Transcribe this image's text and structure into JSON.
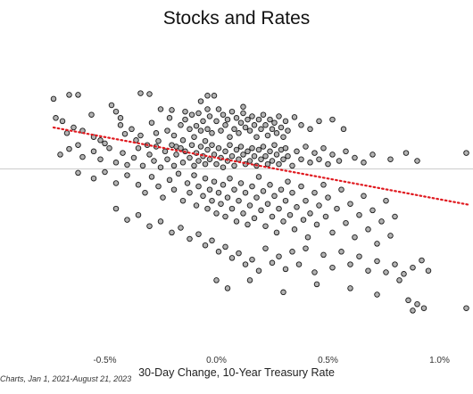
{
  "chart_data": {
    "type": "scatter",
    "title": "Stocks and Rates",
    "xlabel": "30-Day Change, 10-Year Treasury Rate",
    "ylabel": "",
    "source": "Charts, Jan 1, 2021-August 21, 2023",
    "xlim": [
      -0.97,
      1.15
    ],
    "ylim": [
      -0.2,
      0.145
    ],
    "xticks": [
      {
        "value": -0.5,
        "label": "-0.5%"
      },
      {
        "value": 0.0,
        "label": "0.0%"
      },
      {
        "value": 0.5,
        "label": "0.5%"
      },
      {
        "value": 1.0,
        "label": "1.0%"
      }
    ],
    "zero_line_y": 0,
    "trendline": {
      "style": "dotted",
      "color": "#e0191f",
      "x": [
        -0.73,
        1.13
      ],
      "y": [
        0.052,
        -0.045
      ]
    },
    "marker_color": "#b3b3b3",
    "marker_edge": "#1a1a1a",
    "points": [
      [
        -0.73,
        0.088
      ],
      [
        -0.66,
        0.093
      ],
      [
        -0.62,
        0.093
      ],
      [
        -0.56,
        0.068
      ],
      [
        -0.47,
        0.08
      ],
      [
        -0.45,
        0.072
      ],
      [
        -0.43,
        0.064
      ],
      [
        -0.34,
        0.095
      ],
      [
        -0.3,
        0.094
      ],
      [
        -0.2,
        0.074
      ],
      [
        -0.14,
        0.072
      ],
      [
        -0.07,
        0.085
      ],
      [
        -0.04,
        0.092
      ],
      [
        -0.04,
        0.075
      ],
      [
        -0.01,
        0.092
      ],
      [
        0.12,
        0.078
      ],
      [
        -0.72,
        0.064
      ],
      [
        -0.69,
        0.06
      ],
      [
        -0.67,
        0.045
      ],
      [
        -0.64,
        0.052
      ],
      [
        -0.6,
        0.048
      ],
      [
        -0.55,
        0.04
      ],
      [
        -0.52,
        0.036
      ],
      [
        -0.5,
        0.032
      ],
      [
        -0.43,
        0.055
      ],
      [
        -0.41,
        0.044
      ],
      [
        -0.38,
        0.05
      ],
      [
        -0.36,
        0.036
      ],
      [
        -0.34,
        0.042
      ],
      [
        -0.31,
        0.03
      ],
      [
        -0.29,
        0.058
      ],
      [
        -0.27,
        0.045
      ],
      [
        -0.26,
        0.035
      ],
      [
        -0.25,
        0.075
      ],
      [
        -0.22,
        0.048
      ],
      [
        -0.21,
        0.064
      ],
      [
        -0.19,
        0.042
      ],
      [
        -0.18,
        0.028
      ],
      [
        -0.16,
        0.055
      ],
      [
        -0.15,
        0.036
      ],
      [
        -0.14,
        0.062
      ],
      [
        -0.12,
        0.05
      ],
      [
        -0.11,
        0.068
      ],
      [
        -0.1,
        0.04
      ],
      [
        -0.09,
        0.054
      ],
      [
        -0.08,
        0.07
      ],
      [
        -0.07,
        0.048
      ],
      [
        -0.06,
        0.06
      ],
      [
        -0.05,
        0.035
      ],
      [
        -0.04,
        0.05
      ],
      [
        -0.03,
        0.066
      ],
      [
        -0.02,
        0.045
      ],
      [
        0.0,
        0.06
      ],
      [
        0.01,
        0.075
      ],
      [
        0.02,
        0.048
      ],
      [
        0.03,
        0.068
      ],
      [
        0.04,
        0.055
      ],
      [
        0.05,
        0.062
      ],
      [
        0.06,
        0.04
      ],
      [
        0.07,
        0.072
      ],
      [
        0.08,
        0.05
      ],
      [
        0.09,
        0.064
      ],
      [
        0.1,
        0.045
      ],
      [
        0.11,
        0.058
      ],
      [
        0.12,
        0.07
      ],
      [
        0.13,
        0.052
      ],
      [
        0.14,
        0.062
      ],
      [
        0.15,
        0.048
      ],
      [
        0.16,
        0.066
      ],
      [
        0.17,
        0.055
      ],
      [
        0.18,
        0.04
      ],
      [
        0.19,
        0.062
      ],
      [
        0.2,
        0.05
      ],
      [
        0.21,
        0.068
      ],
      [
        0.22,
        0.055
      ],
      [
        0.23,
        0.042
      ],
      [
        0.24,
        0.062
      ],
      [
        0.25,
        0.05
      ],
      [
        0.26,
        0.058
      ],
      [
        0.27,
        0.045
      ],
      [
        0.28,
        0.066
      ],
      [
        0.29,
        0.052
      ],
      [
        0.3,
        0.04
      ],
      [
        0.31,
        0.06
      ],
      [
        0.32,
        0.048
      ],
      [
        0.35,
        0.065
      ],
      [
        0.38,
        0.055
      ],
      [
        0.42,
        0.05
      ],
      [
        0.46,
        0.06
      ],
      [
        0.52,
        0.062
      ],
      [
        0.57,
        0.05
      ],
      [
        -0.7,
        0.018
      ],
      [
        -0.66,
        0.025
      ],
      [
        -0.62,
        0.03
      ],
      [
        -0.6,
        0.015
      ],
      [
        -0.55,
        0.022
      ],
      [
        -0.52,
        0.012
      ],
      [
        -0.48,
        0.026
      ],
      [
        -0.45,
        0.008
      ],
      [
        -0.42,
        0.02
      ],
      [
        -0.4,
        0.005
      ],
      [
        -0.37,
        0.014
      ],
      [
        -0.35,
        0.026
      ],
      [
        -0.33,
        0.004
      ],
      [
        -0.3,
        0.018
      ],
      [
        -0.28,
        0.01
      ],
      [
        -0.27,
        0.028
      ],
      [
        -0.25,
        0.002
      ],
      [
        -0.23,
        0.022
      ],
      [
        -0.22,
        0.012
      ],
      [
        -0.2,
        0.03
      ],
      [
        -0.19,
        0.004
      ],
      [
        -0.18,
        0.018
      ],
      [
        -0.16,
        0.026
      ],
      [
        -0.15,
        0.008
      ],
      [
        -0.14,
        0.022
      ],
      [
        -0.12,
        0.014
      ],
      [
        -0.11,
        0.03
      ],
      [
        -0.1,
        0.004
      ],
      [
        -0.09,
        0.02
      ],
      [
        -0.08,
        0.01
      ],
      [
        -0.07,
        0.028
      ],
      [
        -0.06,
        0.016
      ],
      [
        -0.05,
        0.006
      ],
      [
        -0.04,
        0.024
      ],
      [
        -0.03,
        0.012
      ],
      [
        -0.02,
        0.03
      ],
      [
        -0.01,
        0.018
      ],
      [
        0.0,
        0.006
      ],
      [
        0.01,
        0.026
      ],
      [
        0.02,
        0.014
      ],
      [
        0.03,
        0.002
      ],
      [
        0.04,
        0.022
      ],
      [
        0.05,
        0.01
      ],
      [
        0.06,
        0.03
      ],
      [
        0.07,
        0.016
      ],
      [
        0.08,
        0.004
      ],
      [
        0.09,
        0.024
      ],
      [
        0.1,
        0.012
      ],
      [
        0.11,
        0.028
      ],
      [
        0.12,
        0.018
      ],
      [
        0.13,
        0.006
      ],
      [
        0.14,
        0.022
      ],
      [
        0.15,
        0.01
      ],
      [
        0.16,
        0.026
      ],
      [
        0.17,
        0.016
      ],
      [
        0.18,
        0.004
      ],
      [
        0.19,
        0.024
      ],
      [
        0.2,
        0.012
      ],
      [
        0.21,
        0.028
      ],
      [
        0.22,
        0.016
      ],
      [
        0.23,
        0.006
      ],
      [
        0.24,
        0.022
      ],
      [
        0.25,
        0.01
      ],
      [
        0.26,
        0.03
      ],
      [
        0.27,
        0.018
      ],
      [
        0.28,
        0.006
      ],
      [
        0.29,
        0.024
      ],
      [
        0.3,
        0.012
      ],
      [
        0.31,
        0.026
      ],
      [
        0.32,
        0.016
      ],
      [
        0.34,
        0.004
      ],
      [
        0.36,
        0.022
      ],
      [
        0.38,
        0.012
      ],
      [
        0.4,
        0.028
      ],
      [
        0.42,
        0.008
      ],
      [
        0.44,
        0.02
      ],
      [
        0.46,
        0.012
      ],
      [
        0.48,
        0.026
      ],
      [
        0.5,
        0.006
      ],
      [
        0.52,
        0.018
      ],
      [
        0.55,
        0.01
      ],
      [
        0.58,
        0.022
      ],
      [
        0.62,
        0.014
      ],
      [
        0.66,
        0.008
      ],
      [
        0.7,
        0.018
      ],
      [
        0.78,
        0.012
      ],
      [
        0.85,
        0.02
      ],
      [
        0.9,
        0.01
      ],
      [
        1.12,
        0.02
      ],
      [
        -0.62,
        -0.005
      ],
      [
        -0.55,
        -0.012
      ],
      [
        -0.5,
        -0.004
      ],
      [
        -0.45,
        -0.018
      ],
      [
        -0.4,
        -0.008
      ],
      [
        -0.35,
        -0.02
      ],
      [
        -0.32,
        -0.03
      ],
      [
        -0.29,
        -0.01
      ],
      [
        -0.26,
        -0.022
      ],
      [
        -0.24,
        -0.036
      ],
      [
        -0.21,
        -0.014
      ],
      [
        -0.19,
        -0.026
      ],
      [
        -0.17,
        -0.006
      ],
      [
        -0.15,
        -0.04
      ],
      [
        -0.13,
        -0.018
      ],
      [
        -0.12,
        -0.03
      ],
      [
        -0.1,
        -0.008
      ],
      [
        -0.09,
        -0.046
      ],
      [
        -0.08,
        -0.022
      ],
      [
        -0.06,
        -0.034
      ],
      [
        -0.05,
        -0.012
      ],
      [
        -0.04,
        -0.05
      ],
      [
        -0.03,
        -0.026
      ],
      [
        -0.02,
        -0.04
      ],
      [
        -0.01,
        -0.016
      ],
      [
        0.0,
        -0.056
      ],
      [
        0.01,
        -0.03
      ],
      [
        0.02,
        -0.044
      ],
      [
        0.03,
        -0.02
      ],
      [
        0.04,
        -0.06
      ],
      [
        0.05,
        -0.036
      ],
      [
        0.06,
        -0.012
      ],
      [
        0.07,
        -0.05
      ],
      [
        0.08,
        -0.026
      ],
      [
        0.09,
        -0.066
      ],
      [
        0.1,
        -0.04
      ],
      [
        0.11,
        -0.018
      ],
      [
        0.12,
        -0.056
      ],
      [
        0.13,
        -0.03
      ],
      [
        0.14,
        -0.07
      ],
      [
        0.15,
        -0.046
      ],
      [
        0.16,
        -0.022
      ],
      [
        0.17,
        -0.062
      ],
      [
        0.18,
        -0.036
      ],
      [
        0.19,
        -0.01
      ],
      [
        0.2,
        -0.052
      ],
      [
        0.21,
        -0.028
      ],
      [
        0.22,
        -0.072
      ],
      [
        0.23,
        -0.044
      ],
      [
        0.24,
        -0.02
      ],
      [
        0.25,
        -0.06
      ],
      [
        0.26,
        -0.034
      ],
      [
        0.27,
        -0.08
      ],
      [
        0.28,
        -0.05
      ],
      [
        0.29,
        -0.026
      ],
      [
        0.3,
        -0.066
      ],
      [
        0.31,
        -0.04
      ],
      [
        0.32,
        -0.016
      ],
      [
        0.33,
        -0.058
      ],
      [
        0.34,
        -0.03
      ],
      [
        0.35,
        -0.076
      ],
      [
        0.36,
        -0.048
      ],
      [
        0.38,
        -0.022
      ],
      [
        0.39,
        -0.064
      ],
      [
        0.4,
        -0.04
      ],
      [
        0.41,
        -0.086
      ],
      [
        0.42,
        -0.056
      ],
      [
        0.44,
        -0.03
      ],
      [
        0.45,
        -0.07
      ],
      [
        0.46,
        -0.046
      ],
      [
        0.48,
        -0.02
      ],
      [
        0.49,
        -0.06
      ],
      [
        0.5,
        -0.036
      ],
      [
        0.52,
        -0.08
      ],
      [
        0.54,
        -0.05
      ],
      [
        0.56,
        -0.026
      ],
      [
        0.58,
        -0.068
      ],
      [
        0.6,
        -0.044
      ],
      [
        0.62,
        -0.086
      ],
      [
        0.64,
        -0.058
      ],
      [
        0.66,
        -0.034
      ],
      [
        0.68,
        -0.076
      ],
      [
        0.7,
        -0.052
      ],
      [
        0.72,
        -0.094
      ],
      [
        0.74,
        -0.066
      ],
      [
        0.76,
        -0.04
      ],
      [
        0.78,
        -0.084
      ],
      [
        0.8,
        -0.06
      ],
      [
        -0.45,
        -0.05
      ],
      [
        -0.4,
        -0.064
      ],
      [
        -0.35,
        -0.058
      ],
      [
        -0.3,
        -0.072
      ],
      [
        -0.25,
        -0.066
      ],
      [
        -0.2,
        -0.08
      ],
      [
        -0.16,
        -0.074
      ],
      [
        -0.12,
        -0.088
      ],
      [
        -0.08,
        -0.082
      ],
      [
        -0.05,
        -0.096
      ],
      [
        -0.02,
        -0.09
      ],
      [
        0.01,
        -0.104
      ],
      [
        0.04,
        -0.098
      ],
      [
        0.07,
        -0.112
      ],
      [
        0.1,
        -0.106
      ],
      [
        0.13,
        -0.12
      ],
      [
        0.16,
        -0.114
      ],
      [
        0.19,
        -0.128
      ],
      [
        0.22,
        -0.1
      ],
      [
        0.25,
        -0.118
      ],
      [
        0.28,
        -0.11
      ],
      [
        0.31,
        -0.126
      ],
      [
        0.34,
        -0.104
      ],
      [
        0.37,
        -0.12
      ],
      [
        0.4,
        -0.1
      ],
      [
        0.44,
        -0.13
      ],
      [
        0.48,
        -0.108
      ],
      [
        0.52,
        -0.124
      ],
      [
        0.56,
        -0.104
      ],
      [
        0.6,
        -0.12
      ],
      [
        0.64,
        -0.11
      ],
      [
        0.68,
        -0.128
      ],
      [
        0.72,
        -0.116
      ],
      [
        0.76,
        -0.13
      ],
      [
        0.8,
        -0.12
      ],
      [
        0.84,
        -0.132
      ],
      [
        0.88,
        -0.124
      ],
      [
        0.92,
        -0.115
      ],
      [
        0.95,
        -0.128
      ],
      [
        0.0,
        -0.14
      ],
      [
        0.05,
        -0.15
      ],
      [
        0.15,
        -0.14
      ],
      [
        0.3,
        -0.155
      ],
      [
        0.45,
        -0.145
      ],
      [
        0.6,
        -0.15
      ],
      [
        0.72,
        -0.158
      ],
      [
        0.82,
        -0.14
      ],
      [
        0.86,
        -0.165
      ],
      [
        0.9,
        -0.17
      ],
      [
        0.88,
        -0.178
      ],
      [
        0.93,
        -0.175
      ],
      [
        1.12,
        -0.175
      ],
      [
        1.18,
        -0.18
      ]
    ]
  }
}
